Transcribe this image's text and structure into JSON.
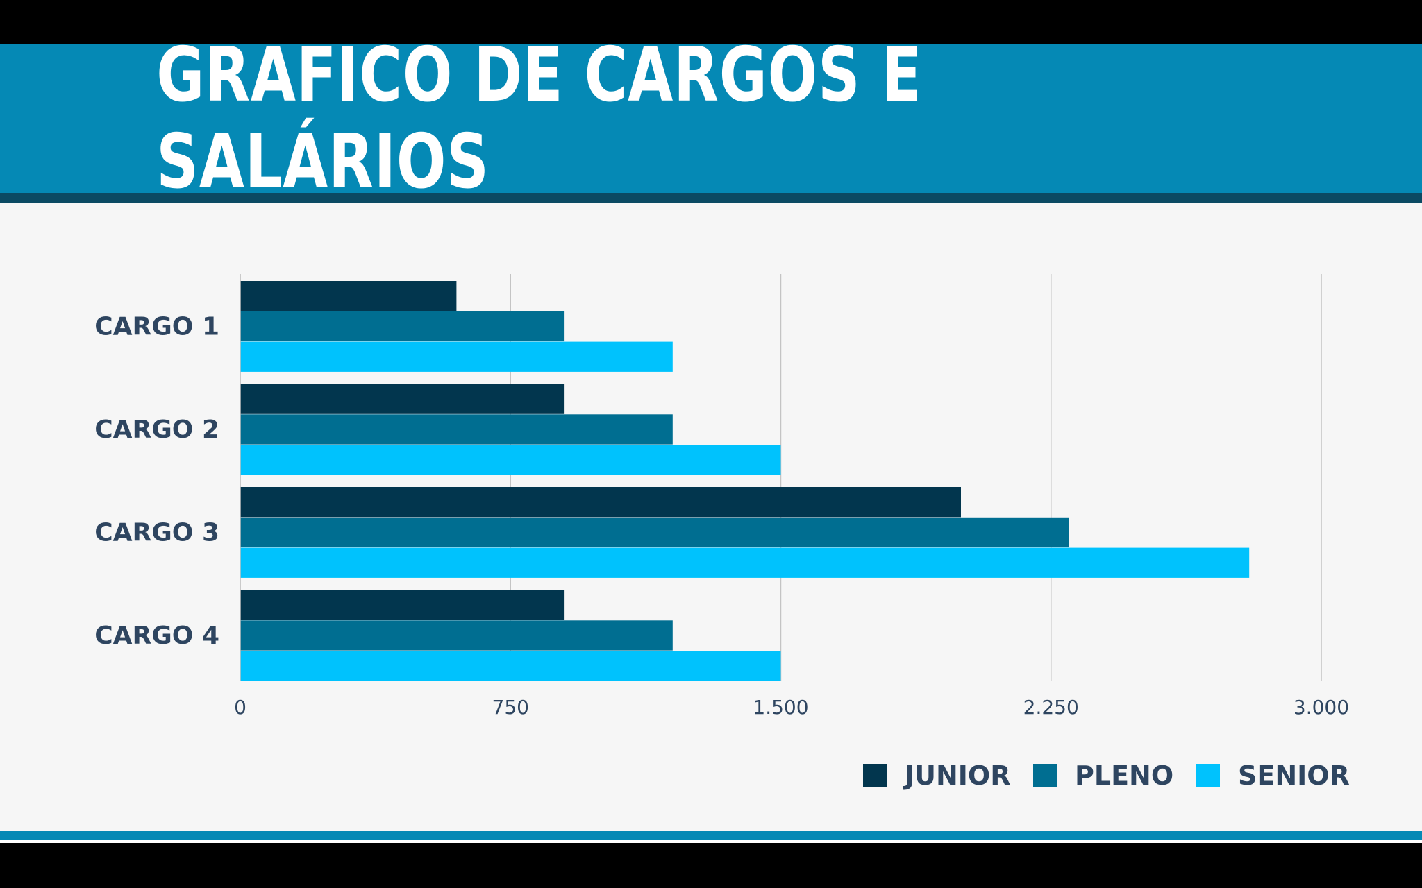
{
  "slide": {
    "title": "GRÁFICO DE CARGOS E SALÁRIOS",
    "colors": {
      "header": "#0589b5",
      "header_strip": "#0b4a63",
      "background": "#f6f6f6",
      "text": "#2e4560",
      "grid": "#c4c4c4"
    }
  },
  "chart_data": {
    "type": "bar",
    "orientation": "horizontal",
    "title": "GRÁFICO DE CARGOS E SALÁRIOS",
    "categories": [
      "CARGO 1",
      "CARGO 2",
      "CARGO 3",
      "CARGO 4"
    ],
    "series": [
      {
        "name": "JUNIOR",
        "color": "#02364e",
        "values": [
          600,
          900,
          2000,
          900
        ]
      },
      {
        "name": "PLENO",
        "color": "#006e91",
        "values": [
          900,
          1200,
          2300,
          1200
        ]
      },
      {
        "name": "SENIOR",
        "color": "#00c2fd",
        "values": [
          1200,
          1500,
          2800,
          1500
        ]
      }
    ],
    "xlim": [
      0,
      3000
    ],
    "xticks": [
      0,
      750,
      1500,
      2250,
      3000
    ],
    "xtick_labels": [
      "0",
      "750",
      "1.500",
      "2.250",
      "3.000"
    ],
    "xlabel": "",
    "ylabel": "",
    "grid": true,
    "legend_position": "bottom-right"
  }
}
